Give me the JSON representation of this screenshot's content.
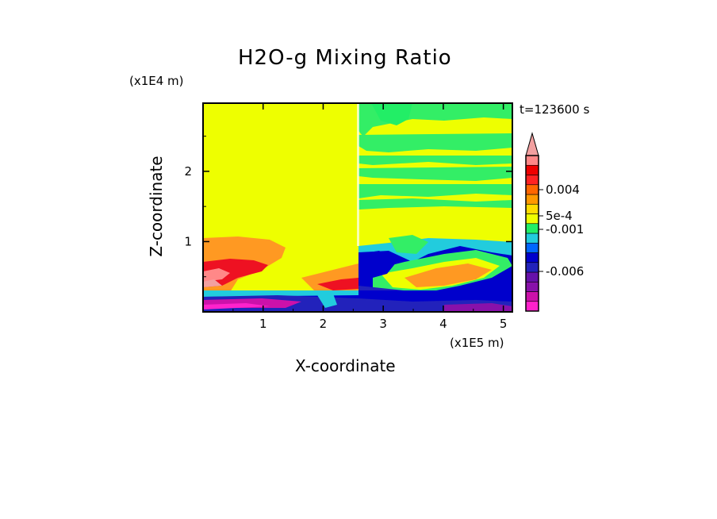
{
  "chart_data": {
    "type": "heatmap",
    "title": "H2O-g Mixing Ratio",
    "xlabel": "X-coordinate",
    "ylabel": "Z-coordinate",
    "x_unit_label": "(x1E5 m)",
    "y_unit_label": "(x1E4 m)",
    "time_label": "t=123600 s",
    "xlim": [
      0,
      5.15
    ],
    "ylim": [
      0,
      2.97
    ],
    "x_ticks": [
      "1",
      "2",
      "3",
      "4",
      "5"
    ],
    "y_ticks": [
      "1",
      "2"
    ],
    "colorbar": {
      "levels_colors": [
        "#ff22cc",
        "#cc11aa",
        "#8811aa",
        "#6611aa",
        "#2222bb",
        "#0000cc",
        "#0066ff",
        "#22ccdd",
        "#22ee66",
        "#eeff00",
        "#ffdd00",
        "#ff9900",
        "#ff6600",
        "#ff2222",
        "#ee0000",
        "#ff8888",
        "#f2a0a0"
      ],
      "labels": [
        "0.004",
        "5e-4",
        "-0.001",
        "-0.006"
      ],
      "extend": "max"
    },
    "colors": {
      "background_field": "#eeff00",
      "green": "#33ee66",
      "orange": "#ff9922",
      "red": "#ee1122",
      "blue": "#0000cc",
      "purple": "#8811aa",
      "magenta": "#ff22cc",
      "cyan": "#22ddee"
    }
  }
}
